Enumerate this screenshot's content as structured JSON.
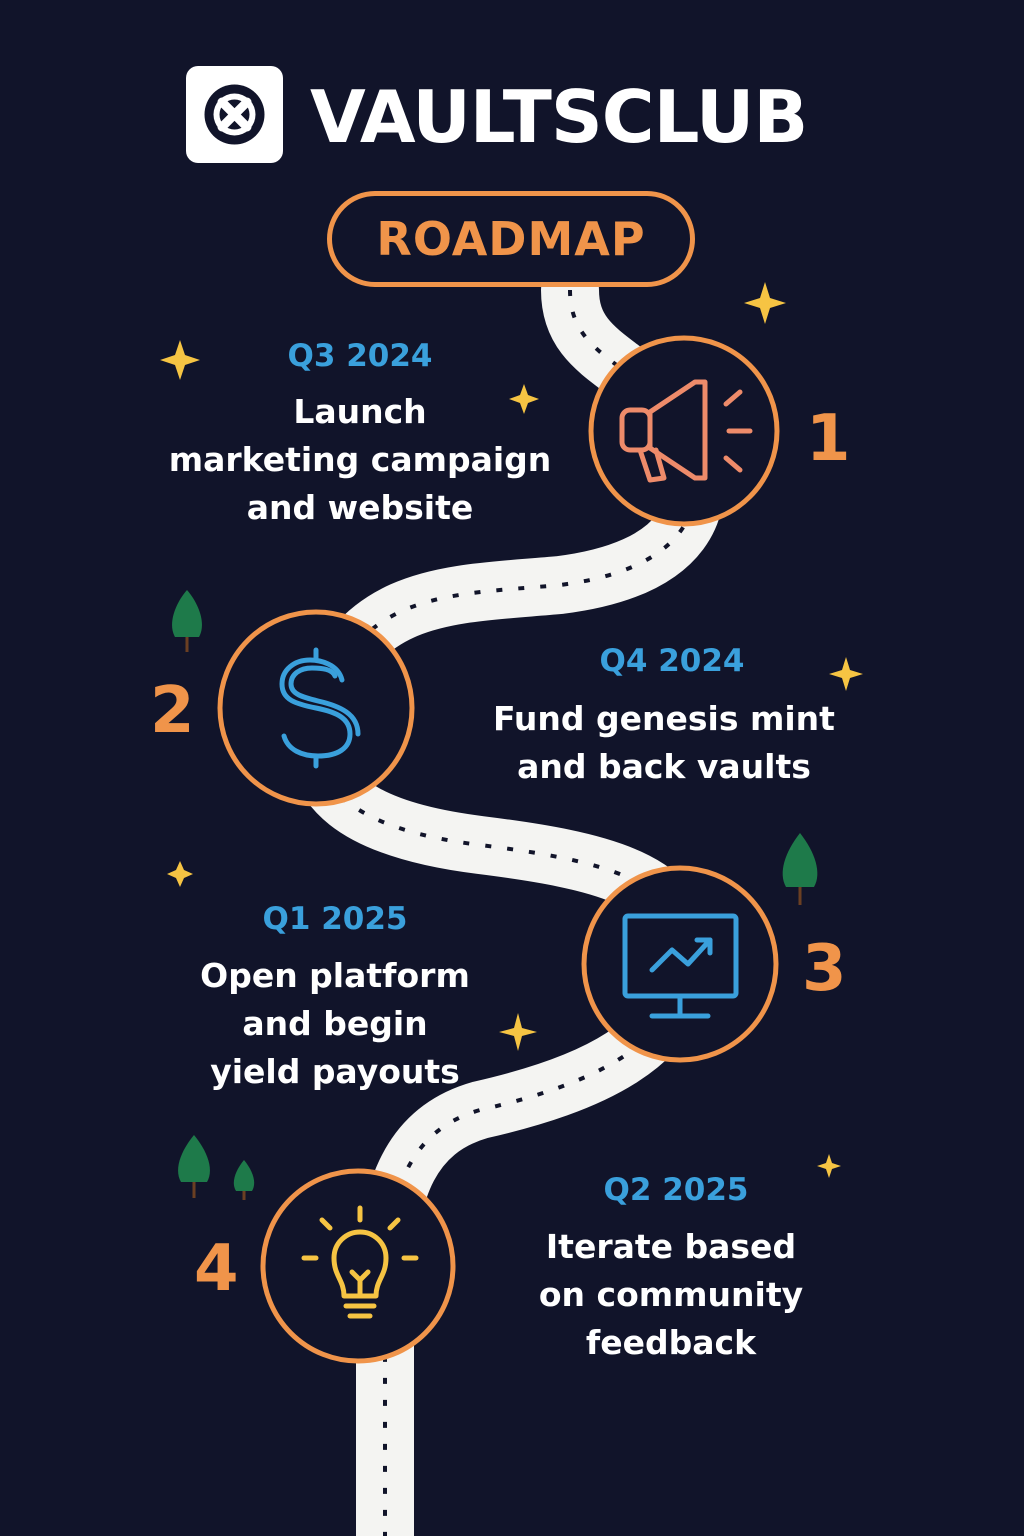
{
  "brand": {
    "name": "VAULTSCLUB",
    "logo_icon": "circle-x-logo-icon"
  },
  "badge": {
    "label": "ROADMAP"
  },
  "colors": {
    "background": "#11142a",
    "accent": "#f0944a",
    "quarter": "#3aa0dc",
    "road": "#f4f4f2",
    "sparkle": "#f6c443",
    "tree": "#1e7a4a"
  },
  "milestones": [
    {
      "number": "1",
      "quarter": "Q3 2024",
      "lines": [
        "Launch",
        "marketing campaign",
        "and website"
      ],
      "icon": "megaphone-icon",
      "icon_color": "#ee8b6a"
    },
    {
      "number": "2",
      "quarter": "Q4 2024",
      "lines": [
        "Fund genesis mint",
        "and back vaults"
      ],
      "icon": "dollar-sign-icon",
      "icon_color": "#3aa0dc"
    },
    {
      "number": "3",
      "quarter": "Q1 2025",
      "lines": [
        "Open platform",
        "and begin",
        "yield payouts"
      ],
      "icon": "chart-monitor-icon",
      "icon_color": "#3aa0dc"
    },
    {
      "number": "4",
      "quarter": "Q2 2025",
      "lines": [
        "Iterate based",
        "on community",
        "feedback"
      ],
      "icon": "lightbulb-icon",
      "icon_color": "#f6c443"
    }
  ]
}
